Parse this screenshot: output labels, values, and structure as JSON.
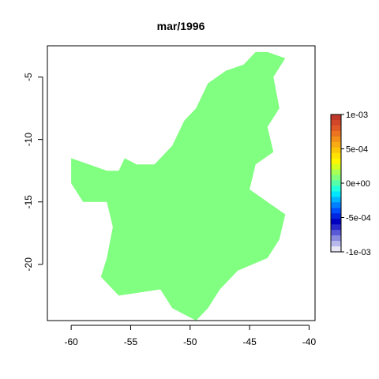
{
  "chart_data": {
    "type": "heatmap",
    "title": "mar/1996",
    "xlabel": "",
    "ylabel": "",
    "xlim": [
      -62,
      -39.5
    ],
    "ylim": [
      -24.5,
      -2.5
    ],
    "x_ticks": [
      -60,
      -55,
      -50,
      -45,
      -40
    ],
    "x_tick_labels": [
      "-60",
      "-55",
      "-50",
      "-45",
      "-40"
    ],
    "y_ticks": [
      -5,
      -10,
      -15,
      -20
    ],
    "y_tick_labels": [
      "-5",
      "-10",
      "-15",
      "-20"
    ],
    "fill_value": 0,
    "fill_color": "#80ff80",
    "region_outline_lonlat": [
      [
        -43.5,
        -3.0
      ],
      [
        -42.0,
        -3.5
      ],
      [
        -43.0,
        -5.0
      ],
      [
        -42.5,
        -7.5
      ],
      [
        -43.5,
        -9.0
      ],
      [
        -43.0,
        -11.0
      ],
      [
        -44.5,
        -12.0
      ],
      [
        -45.0,
        -14.0
      ],
      [
        -43.5,
        -15.0
      ],
      [
        -42.0,
        -16.0
      ],
      [
        -42.5,
        -18.0
      ],
      [
        -43.5,
        -19.5
      ],
      [
        -46.0,
        -20.5
      ],
      [
        -47.5,
        -22.0
      ],
      [
        -48.5,
        -23.5
      ],
      [
        -49.5,
        -24.5
      ],
      [
        -51.5,
        -23.5
      ],
      [
        -52.5,
        -22.0
      ],
      [
        -56.0,
        -22.5
      ],
      [
        -57.5,
        -21.0
      ],
      [
        -57.0,
        -19.5
      ],
      [
        -56.5,
        -17.0
      ],
      [
        -57.0,
        -15.0
      ],
      [
        -59.0,
        -15.0
      ],
      [
        -60.0,
        -13.5
      ],
      [
        -60.0,
        -11.5
      ],
      [
        -58.5,
        -12.0
      ],
      [
        -57.0,
        -12.5
      ],
      [
        -56.0,
        -12.5
      ],
      [
        -55.5,
        -11.5
      ],
      [
        -54.5,
        -12.0
      ],
      [
        -53.0,
        -12.0
      ],
      [
        -51.5,
        -10.5
      ],
      [
        -50.5,
        -8.5
      ],
      [
        -49.5,
        -7.5
      ],
      [
        -48.5,
        -5.5
      ],
      [
        -47.0,
        -4.5
      ],
      [
        -45.5,
        -4.0
      ],
      [
        -44.5,
        -3.0
      ]
    ],
    "colorbar": {
      "min": -0.001,
      "max": 0.001,
      "tick_values": [
        0.001,
        0.0005,
        0,
        -0.0005,
        -0.001
      ],
      "tick_labels": [
        "1e-03",
        "5e-04",
        "0e+00",
        "-5e-04",
        "-1e-03"
      ],
      "colors_top_to_bottom": [
        "#c0392b",
        "#d2472a",
        "#e05a28",
        "#ec7320",
        "#f39019",
        "#f8ab12",
        "#fcc70b",
        "#ffe205",
        "#fff700",
        "#d6ff20",
        "#a8ff55",
        "#80ff80",
        "#55ffaa",
        "#22ffdd",
        "#00e6ff",
        "#00b4ff",
        "#0080ff",
        "#0050ff",
        "#0026e0",
        "#0000c0",
        "#2a2acc",
        "#5a5ad6",
        "#8a8ae0",
        "#b8b8ea",
        "#e6e6f5"
      ]
    }
  }
}
